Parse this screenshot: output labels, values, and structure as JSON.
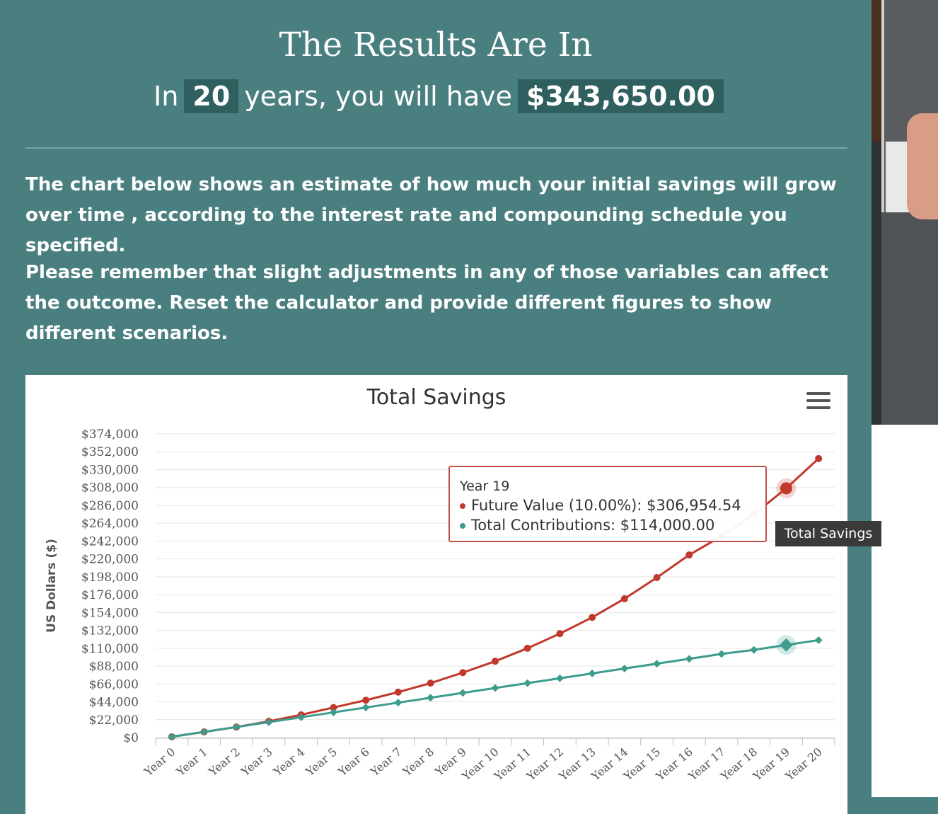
{
  "header": {
    "title": "The Results Are In",
    "prefix": "In",
    "years": "20",
    "middle": "years, you will have",
    "amount": "$343,650.00"
  },
  "paragraphs": [
    "The chart below shows an estimate of how much your initial savings will grow over time , according to the interest rate and compounding schedule you specified.",
    "Please remember that slight adjustments in any of those variables can affect the outcome. Reset the calculator and provide different figures to show different scenarios."
  ],
  "menu_icon": "hamburger-icon",
  "tooltip": {
    "title": "Year 19",
    "row1": "Future Value (10.00%): $306,954.54",
    "row2": "Total Contributions: $114,000.00"
  },
  "side_label": "Total Savings",
  "colors": {
    "panel": "#4a7f80",
    "future_value": "#c0392b",
    "contributions": "#3d9c8e"
  },
  "chart_data": {
    "type": "line",
    "title": "Total Savings",
    "ylabel": "US Dollars ($)",
    "xlabel": "",
    "ylim": [
      0,
      374000
    ],
    "yticks": [
      "$0",
      "$22,000",
      "$44,000",
      "$66,000",
      "$88,000",
      "$110,000",
      "$132,000",
      "$154,000",
      "$176,000",
      "$198,000",
      "$220,000",
      "$242,000",
      "$264,000",
      "$286,000",
      "$308,000",
      "$330,000",
      "$352,000",
      "$374,000"
    ],
    "categories": [
      "Year 0",
      "Year 1",
      "Year 2",
      "Year 3",
      "Year 4",
      "Year 5",
      "Year 6",
      "Year 7",
      "Year 8",
      "Year 9",
      "Year 10",
      "Year 11",
      "Year 12",
      "Year 13",
      "Year 14",
      "Year 15",
      "Year 16",
      "Year 17",
      "Year 18",
      "Year 19",
      "Year 20"
    ],
    "series": [
      {
        "name": "Future Value (10.00%)",
        "values": [
          1000,
          7000,
          13000,
          20000,
          28000,
          37000,
          46000,
          56000,
          67000,
          80000,
          94000,
          110000,
          128000,
          148000,
          171000,
          197000,
          225000,
          248000,
          275000,
          306954.54,
          343650
        ]
      },
      {
        "name": "Total Contributions",
        "values": [
          1000,
          7000,
          13000,
          19000,
          25000,
          31000,
          37000,
          43000,
          49000,
          55000,
          61000,
          67000,
          73000,
          79000,
          85000,
          91000,
          97000,
          103000,
          108000,
          114000,
          120000
        ]
      }
    ],
    "grid": true,
    "legend": "none",
    "highlight_index": 19
  }
}
